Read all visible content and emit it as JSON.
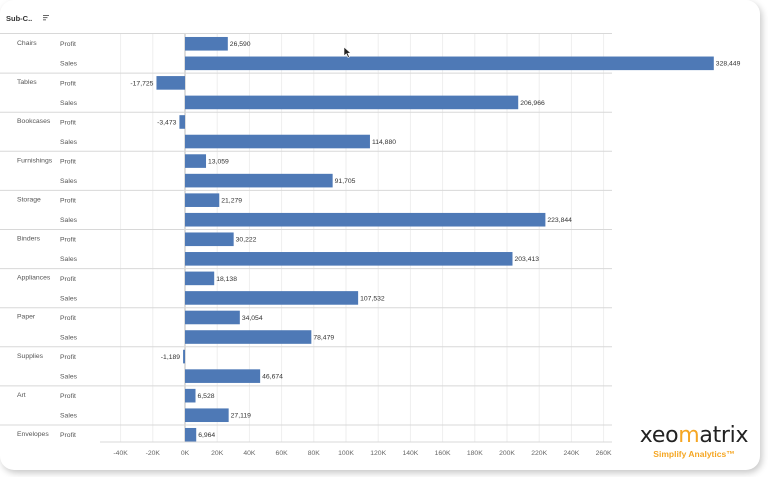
{
  "chart_data": {
    "type": "bar",
    "orientation": "horizontal",
    "header": "Sub-C..",
    "header_icon": "sort-icon",
    "measures": [
      "Profit",
      "Sales"
    ],
    "bar_color": "#4e79b6",
    "xlim": [
      -48000,
      268000
    ],
    "xticks": [
      {
        "value": -40000,
        "label": "-40K"
      },
      {
        "value": -20000,
        "label": "-20K"
      },
      {
        "value": 0,
        "label": "0K"
      },
      {
        "value": 20000,
        "label": "20K"
      },
      {
        "value": 40000,
        "label": "40K"
      },
      {
        "value": 60000,
        "label": "60K"
      },
      {
        "value": 80000,
        "label": "80K"
      },
      {
        "value": 100000,
        "label": "100K"
      },
      {
        "value": 120000,
        "label": "120K"
      },
      {
        "value": 140000,
        "label": "140K"
      },
      {
        "value": 160000,
        "label": "160K"
      },
      {
        "value": 180000,
        "label": "180K"
      },
      {
        "value": 200000,
        "label": "200K"
      },
      {
        "value": 220000,
        "label": "220K"
      },
      {
        "value": 240000,
        "label": "240K"
      },
      {
        "value": 260000,
        "label": "260K"
      }
    ],
    "categories": [
      {
        "name": "Chairs",
        "bars": [
          {
            "measure": "Profit",
            "value": 26590,
            "label": "26,590"
          },
          {
            "measure": "Sales",
            "value": 328449,
            "label": "328,449"
          }
        ]
      },
      {
        "name": "Tables",
        "bars": [
          {
            "measure": "Profit",
            "value": -17725,
            "label": "-17,725"
          },
          {
            "measure": "Sales",
            "value": 206966,
            "label": "206,966"
          }
        ]
      },
      {
        "name": "Bookcases",
        "bars": [
          {
            "measure": "Profit",
            "value": -3473,
            "label": "-3,473"
          },
          {
            "measure": "Sales",
            "value": 114880,
            "label": "114,880"
          }
        ]
      },
      {
        "name": "Furnishings",
        "bars": [
          {
            "measure": "Profit",
            "value": 13059,
            "label": "13,059"
          },
          {
            "measure": "Sales",
            "value": 91705,
            "label": "91,705"
          }
        ]
      },
      {
        "name": "Storage",
        "bars": [
          {
            "measure": "Profit",
            "value": 21279,
            "label": "21,279"
          },
          {
            "measure": "Sales",
            "value": 223844,
            "label": "223,844"
          }
        ]
      },
      {
        "name": "Binders",
        "bars": [
          {
            "measure": "Profit",
            "value": 30222,
            "label": "30,222"
          },
          {
            "measure": "Sales",
            "value": 203413,
            "label": "203,413"
          }
        ]
      },
      {
        "name": "Appliances",
        "bars": [
          {
            "measure": "Profit",
            "value": 18138,
            "label": "18,138"
          },
          {
            "measure": "Sales",
            "value": 107532,
            "label": "107,532"
          }
        ]
      },
      {
        "name": "Paper",
        "bars": [
          {
            "measure": "Profit",
            "value": 34054,
            "label": "34,054"
          },
          {
            "measure": "Sales",
            "value": 78479,
            "label": "78,479"
          }
        ]
      },
      {
        "name": "Supplies",
        "bars": [
          {
            "measure": "Profit",
            "value": -1189,
            "label": "-1,189"
          },
          {
            "measure": "Sales",
            "value": 46674,
            "label": "46,674"
          }
        ]
      },
      {
        "name": "Art",
        "bars": [
          {
            "measure": "Profit",
            "value": 6528,
            "label": "6,528"
          },
          {
            "measure": "Sales",
            "value": 27119,
            "label": "27,119"
          }
        ]
      },
      {
        "name": "Envelopes",
        "bars": [
          {
            "measure": "Profit",
            "value": 6964,
            "label": "6,964"
          }
        ]
      }
    ]
  },
  "logo": {
    "name_part1": "xeo",
    "name_accent": "m",
    "name_part2": "atrix",
    "tagline": "Simplify Analytics™"
  }
}
